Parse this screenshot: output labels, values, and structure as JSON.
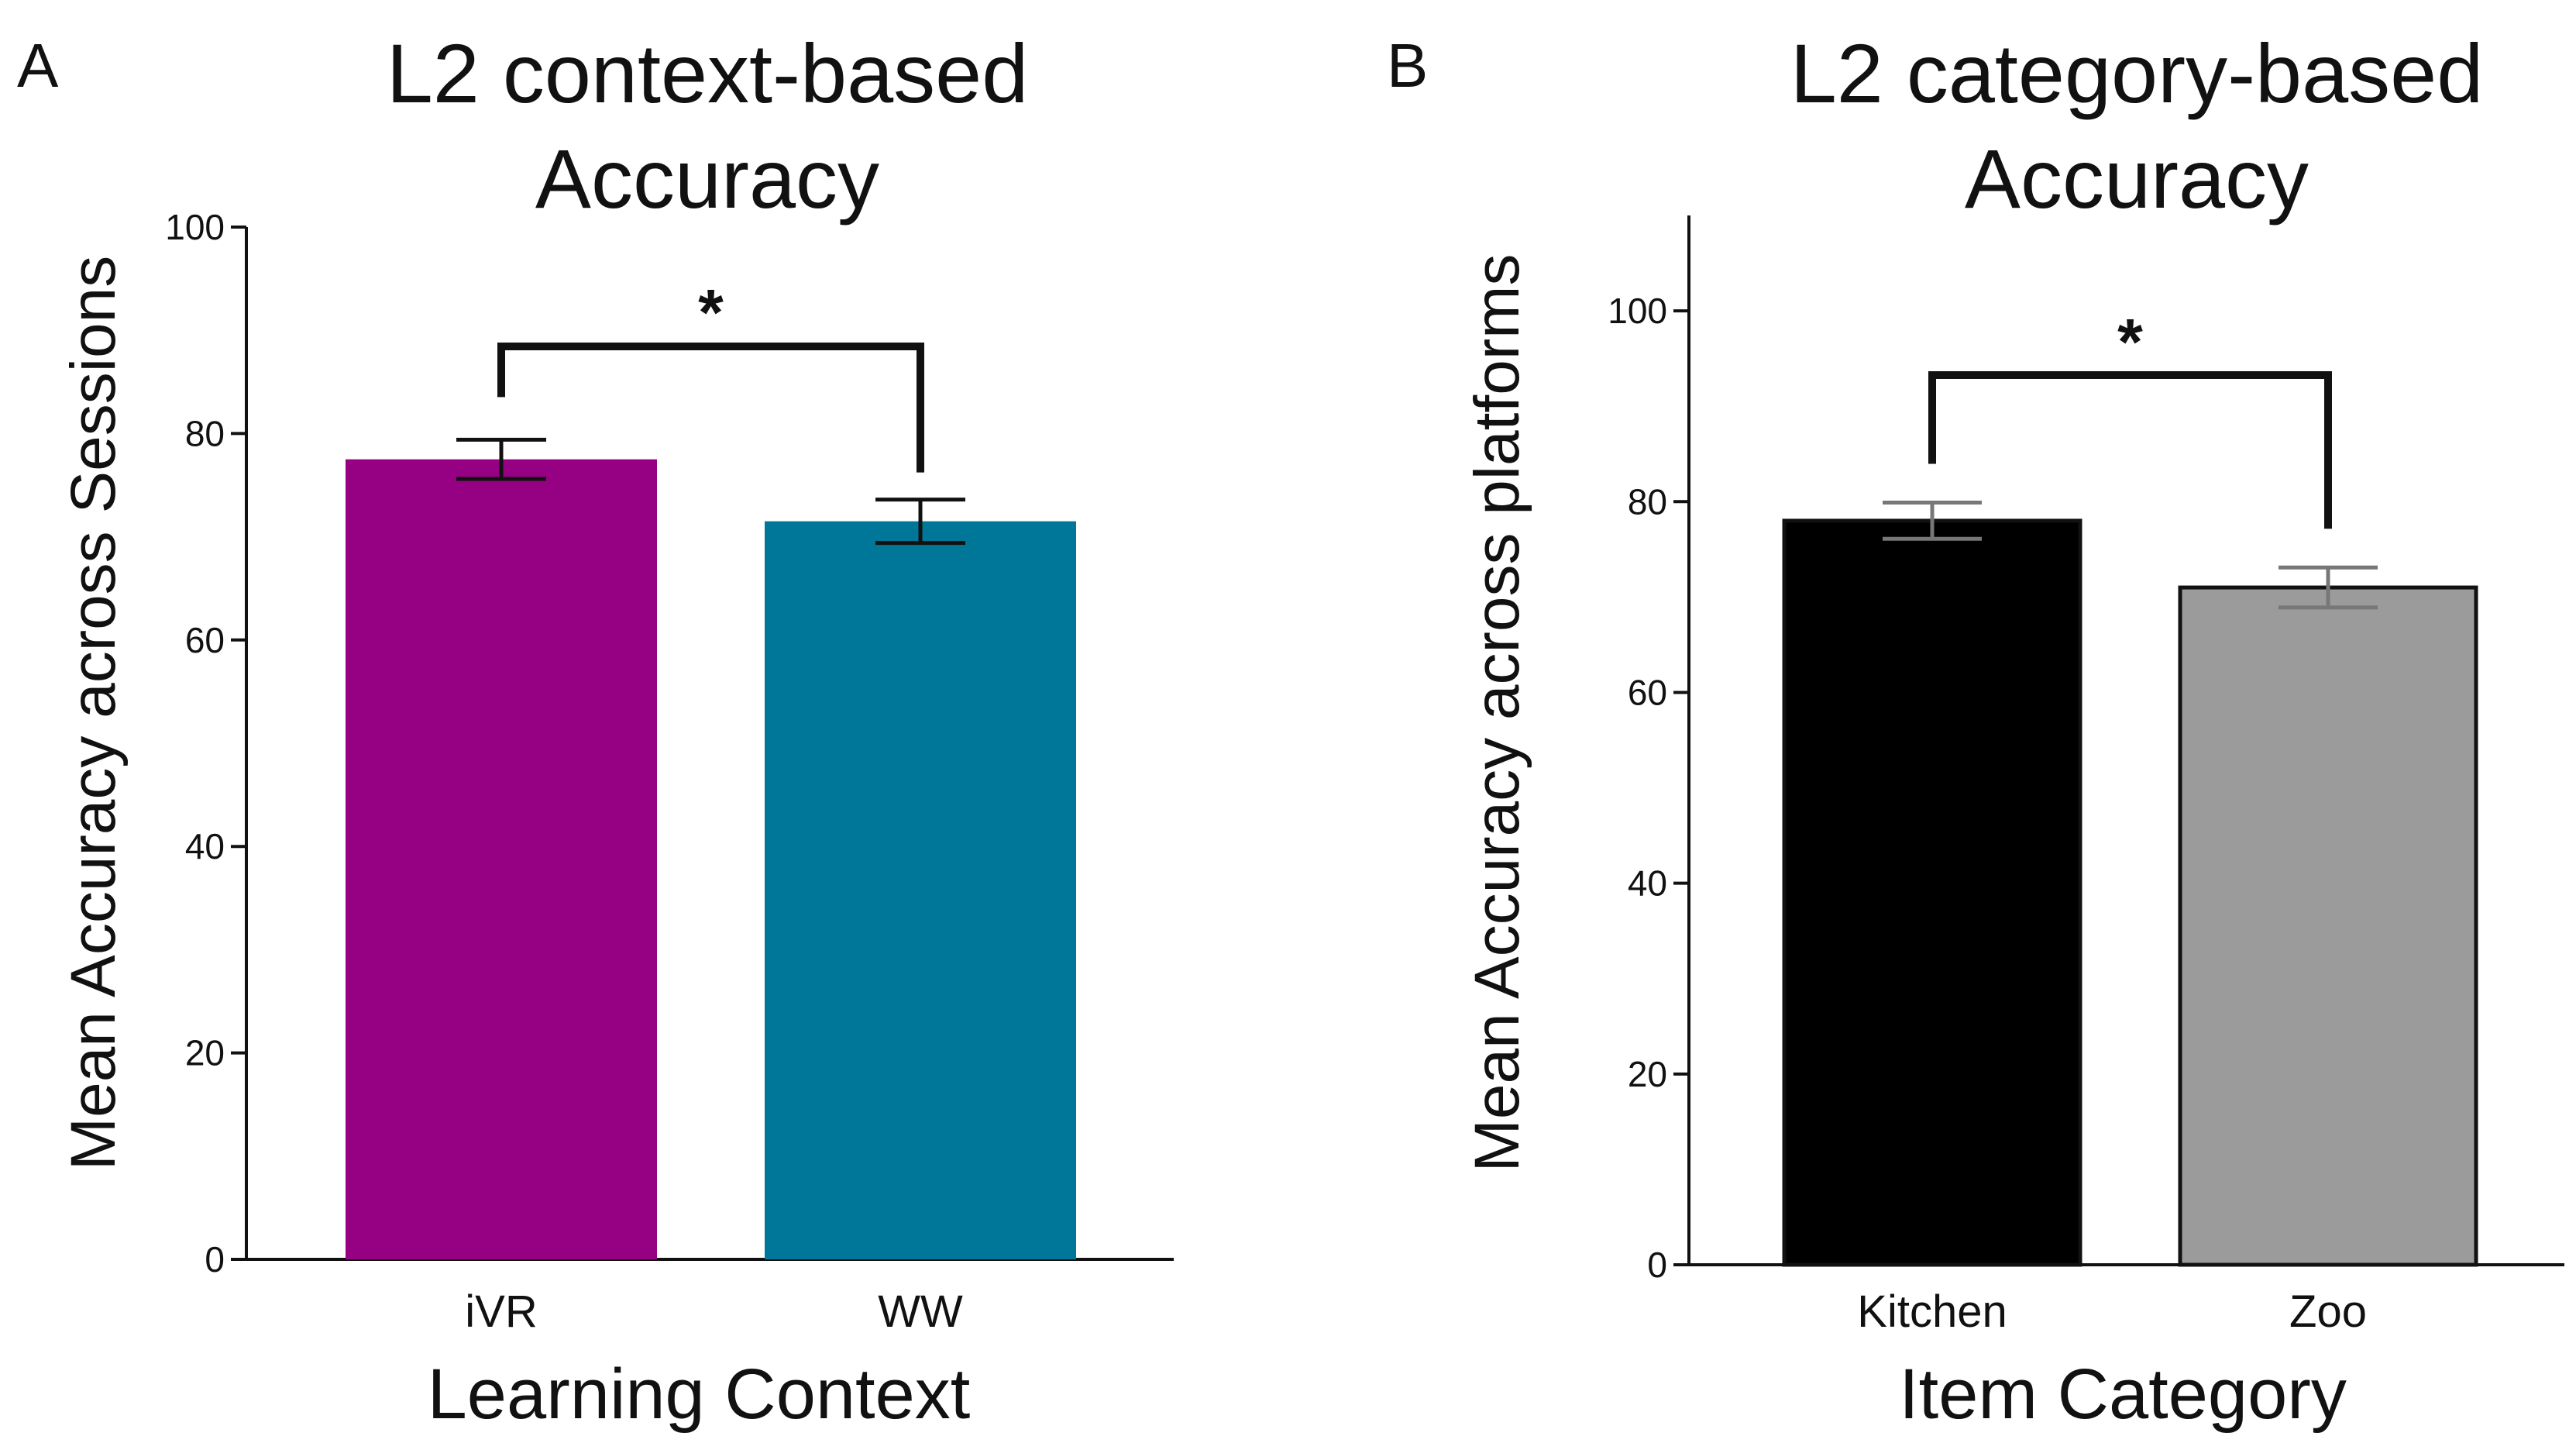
{
  "chart_data": [
    {
      "type": "bar",
      "panel": "A",
      "title": [
        "L2 context-based",
        "Accuracy"
      ],
      "xlabel": "Learning Context",
      "ylabel": "Mean Accuracy across Sessions",
      "categories": [
        "iVR",
        "WW"
      ],
      "values": [
        77.5,
        71.5
      ],
      "error": [
        1.9,
        2.1
      ],
      "colors": [
        "#960082",
        "#007799"
      ],
      "bar_stroke": "none",
      "error_color": "#111111",
      "ylim": [
        0,
        100
      ],
      "yticks": [
        0,
        20,
        40,
        60,
        80,
        100
      ],
      "significance": {
        "label": "*",
        "between": [
          0,
          1
        ]
      }
    },
    {
      "type": "bar",
      "panel": "B",
      "title": [
        "L2 category-based",
        "Accuracy"
      ],
      "xlabel": "Item Category",
      "ylabel": "Mean Accuracy across platforms",
      "categories": [
        "Kitchen",
        "Zoo"
      ],
      "values": [
        78,
        71
      ],
      "error": [
        1.9,
        2.1
      ],
      "colors": [
        "#000000",
        "#9b9b9b"
      ],
      "bar_stroke": "#111111",
      "error_color": "#777777",
      "ylim": [
        0,
        110
      ],
      "yticks": [
        0,
        20,
        40,
        60,
        80,
        100
      ],
      "significance": {
        "label": "*",
        "between": [
          0,
          1
        ]
      }
    }
  ]
}
